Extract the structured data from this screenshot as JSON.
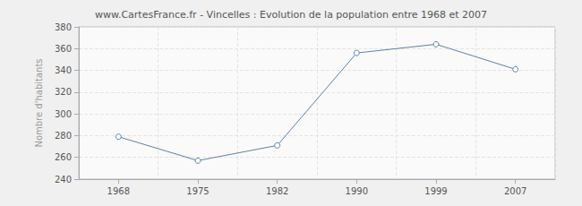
{
  "chart_data": {
    "type": "line",
    "title": "www.CartesFrance.fr - Vincelles : Evolution de la population entre 1968 et 2007",
    "y_label": "Nombre d'habitants",
    "categories": [
      "1968",
      "1975",
      "1982",
      "1990",
      "1999",
      "2007"
    ],
    "values": [
      279,
      257,
      271,
      356,
      364,
      341
    ],
    "color": "#5b82a8",
    "marker": "circle",
    "ylim": [
      240,
      380
    ],
    "yticks": [
      240,
      260,
      280,
      300,
      320,
      340,
      360,
      380
    ],
    "grid": true
  }
}
